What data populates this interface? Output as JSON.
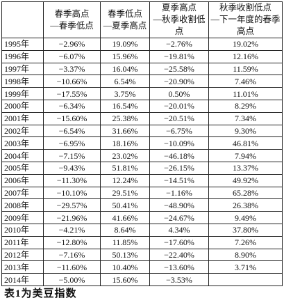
{
  "table": {
    "columns": [
      [
        "春季高点",
        "—春季低点"
      ],
      [
        "春季低点",
        "—夏季高点"
      ],
      [
        "夏季高点",
        "—秋季收割低点"
      ],
      [
        "秋季收割低点",
        "—下一年度的春季高点"
      ]
    ],
    "rows": [
      [
        "1995年",
        "−2.96%",
        "19.09%",
        "−2.76%",
        "19.02%"
      ],
      [
        "1996年",
        "−6.07%",
        "15.96%",
        "−19.81%",
        "12.16%"
      ],
      [
        "1997年",
        "−3.37%",
        "16.04%",
        "−25.58%",
        "11.59%"
      ],
      [
        "1998年",
        "−10.66%",
        "6.54%",
        "−20.90%",
        "7.46%"
      ],
      [
        "1999年",
        "−17.55%",
        "3.75%",
        "0.50%",
        "11.01%"
      ],
      [
        "2000年",
        "−6.34%",
        "16.54%",
        "−20.01%",
        "8.29%"
      ],
      [
        "2001年",
        "−15.60%",
        "25.38%",
        "−20.51%",
        "7.34%"
      ],
      [
        "2002年",
        "−6.54%",
        "31.66%",
        "−6.75%",
        "9.30%"
      ],
      [
        "2003年",
        "−6.95%",
        "18.16%",
        "−10.09%",
        "46.81%"
      ],
      [
        "2004年",
        "−7.15%",
        "23.02%",
        "−46.18%",
        "7.94%"
      ],
      [
        "2005年",
        "−9.43%",
        "51.81%",
        "−26.15%",
        "13.37%"
      ],
      [
        "2006年",
        "−11.30%",
        "12.24%",
        "−14.51%",
        "49.92%"
      ],
      [
        "2007年",
        "−10.10%",
        "29.51%",
        "−1.16%",
        "65.28%"
      ],
      [
        "2008年",
        "−29.57%",
        "50.41%",
        "−48.90%",
        "26.38%"
      ],
      [
        "2009年",
        "−21.96%",
        "41.66%",
        "−24.67%",
        "9.49%"
      ],
      [
        "2010年",
        "−4.21%",
        "8.64%",
        "4.34%",
        "37.80%"
      ],
      [
        "2011年",
        "−12.80%",
        "11.85%",
        "−17.60%",
        "7.26%"
      ],
      [
        "2012年",
        "−7.16%",
        "50.13%",
        "−22.40%",
        "8.90%"
      ],
      [
        "2013年",
        "−11.60%",
        "10.40%",
        "−13.60%",
        "3.71%"
      ],
      [
        "2014年",
        "−5.00%",
        "15.60%",
        "−3.53%"
      ]
    ]
  },
  "caption": "表1为美豆指数"
}
